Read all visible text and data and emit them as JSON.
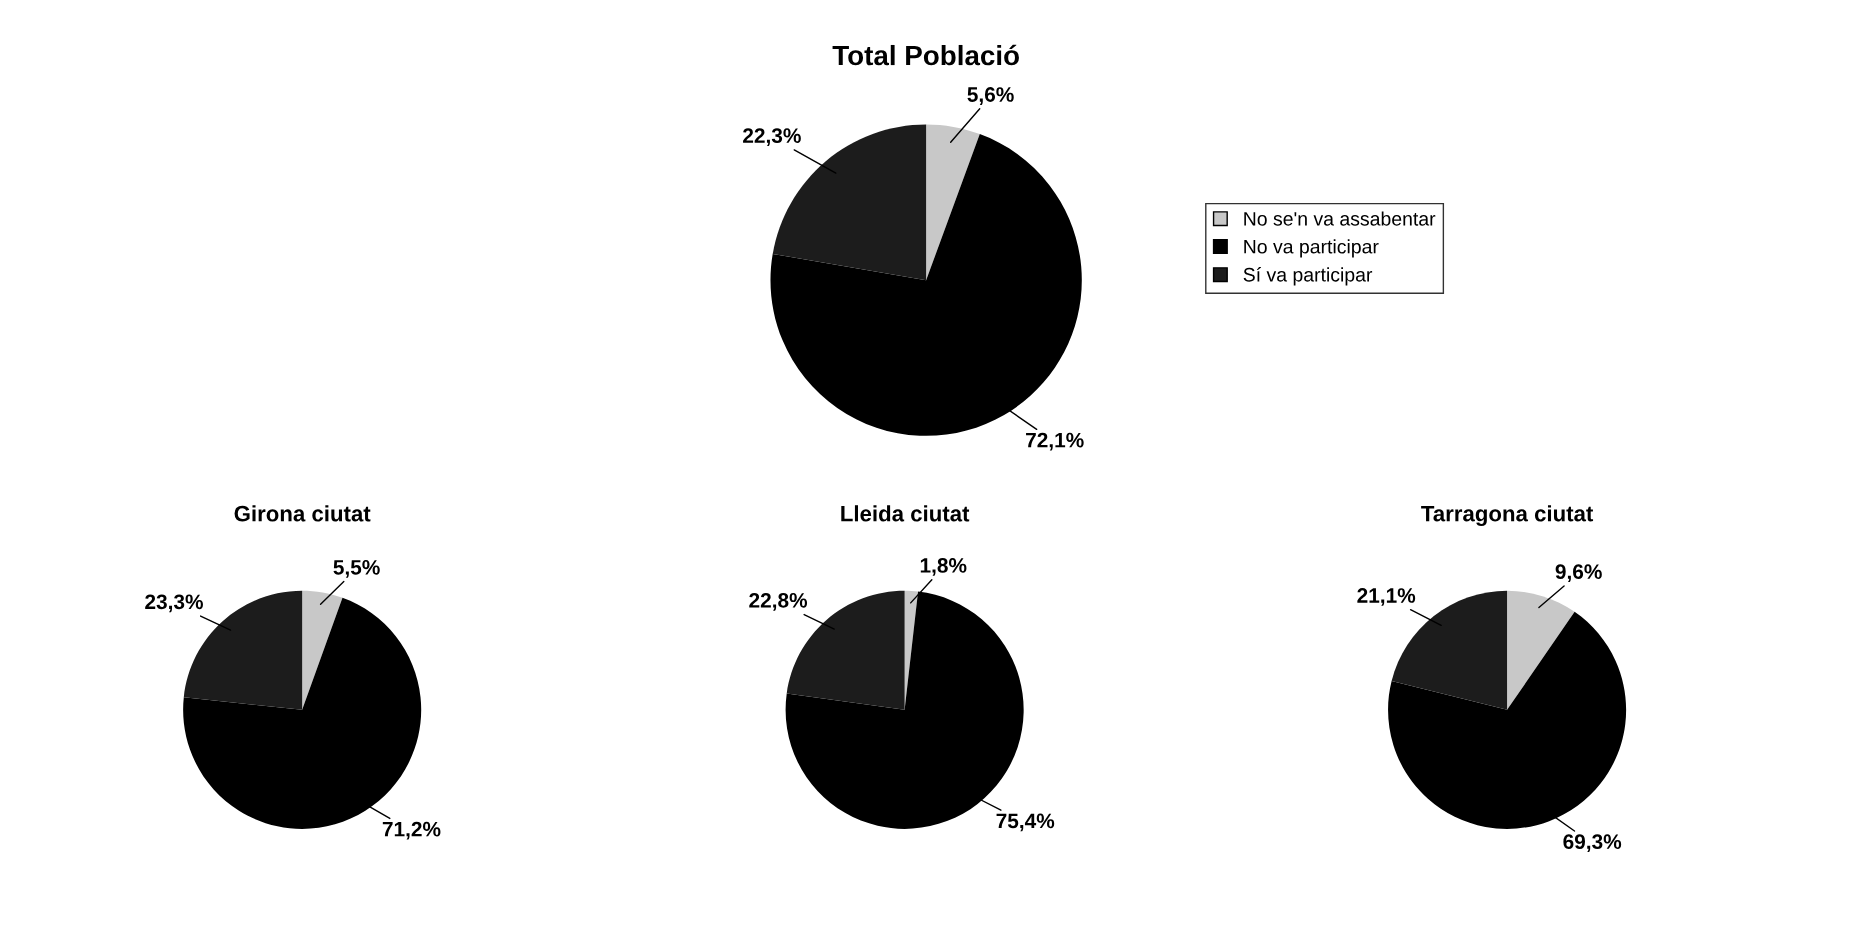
{
  "chart_data": [
    {
      "type": "pie",
      "title": "Total Població",
      "categories": [
        "No se'n va assabentar",
        "No va participar",
        "Sí va participar"
      ],
      "values": [
        5.6,
        72.1,
        22.3
      ],
      "colors": [
        "#c8c8c8",
        "#000000",
        "#1c1c1c"
      ],
      "value_labels": [
        "5,6%",
        "72,1%",
        "22,3%"
      ],
      "legend": "right"
    },
    {
      "type": "pie",
      "title": "Girona ciutat",
      "categories": [
        null,
        null,
        null
      ],
      "values": [
        5.5,
        71.2,
        23.3
      ],
      "colors": [
        "#c8c8c8",
        "#000000",
        "#1c1c1c"
      ],
      "value_labels": [
        "5,5%",
        "71,2%",
        "23,3%"
      ]
    },
    {
      "type": "pie",
      "title": "Lleida ciutat",
      "categories": [
        null,
        null,
        null
      ],
      "values": [
        1.8,
        75.4,
        22.8
      ],
      "colors": [
        "#c8c8c8",
        "#000000",
        "#1c1c1c"
      ],
      "value_labels": [
        "1,8%",
        "75,4%",
        "22,8%"
      ]
    },
    {
      "type": "pie",
      "title": "Tarragona ciutat",
      "categories": [
        null,
        null,
        null
      ],
      "values": [
        9.6,
        69.3,
        21.1
      ],
      "colors": [
        "#c8c8c8",
        "#000000",
        "#1c1c1c"
      ],
      "value_labels": [
        "9,6%",
        "69,3%",
        "21,1%"
      ]
    }
  ]
}
